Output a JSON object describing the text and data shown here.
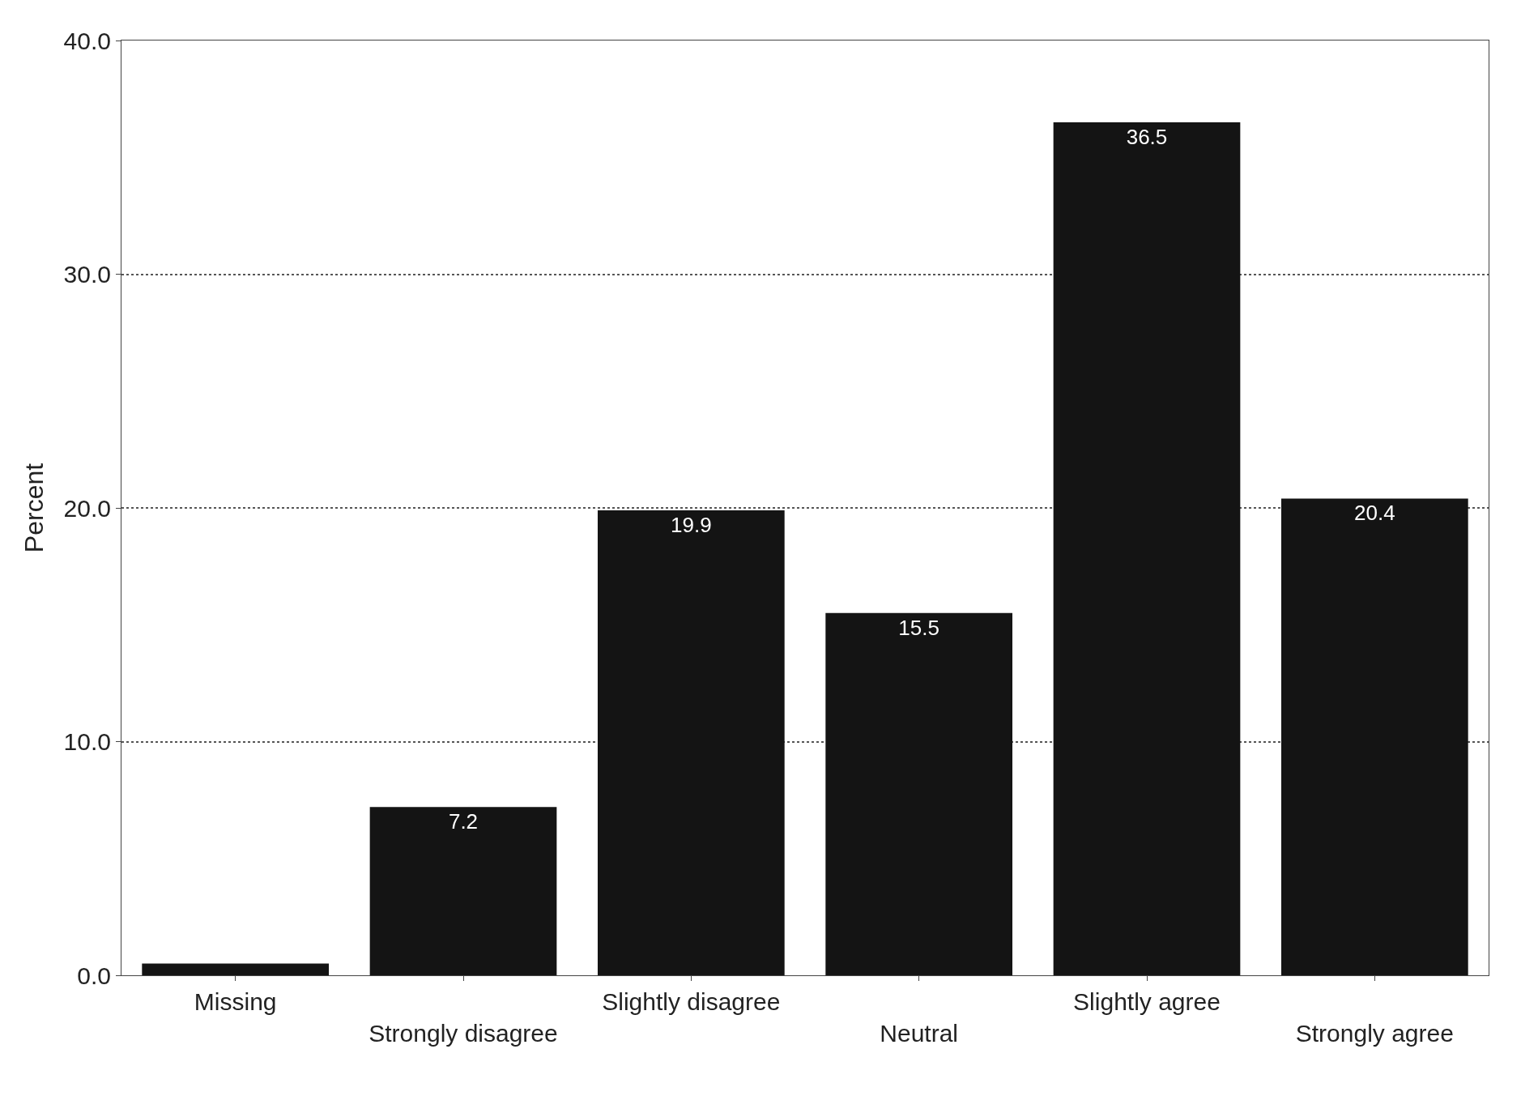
{
  "chart_data": {
    "type": "bar",
    "ylabel": "Percent",
    "categories": [
      "Missing",
      "Strongly disagree",
      "Slightly disagree",
      "Neutral",
      "Slightly agree",
      "Strongly agree"
    ],
    "values": [
      0.5,
      7.2,
      19.9,
      15.5,
      36.5,
      20.4
    ],
    "value_labels": [
      null,
      "7.2",
      "19.9",
      "15.5",
      "36.5",
      "20.4"
    ],
    "color": "#141414",
    "ylim": [
      0,
      40
    ],
    "yticks": [
      {
        "value": 0,
        "label": "0.0"
      },
      {
        "value": 10,
        "label": "10.0"
      },
      {
        "value": 20,
        "label": "20.0"
      },
      {
        "value": 30,
        "label": "30.0"
      },
      {
        "value": 40,
        "label": "40.0"
      }
    ],
    "grid": "y",
    "legend": false
  }
}
